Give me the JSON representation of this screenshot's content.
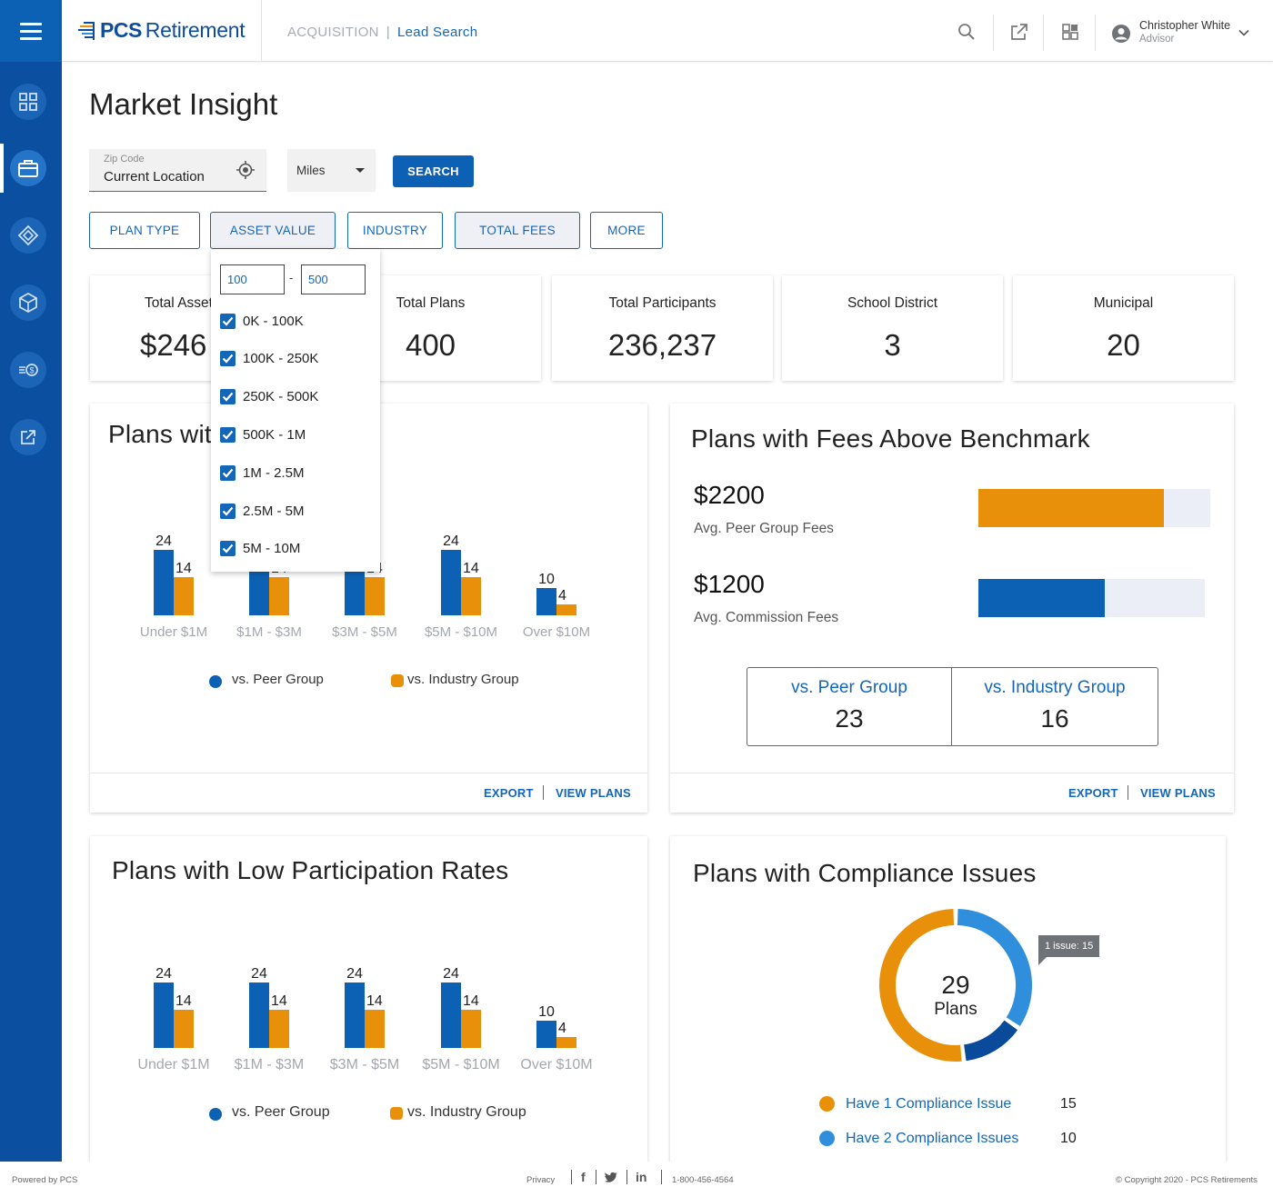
{
  "app": {
    "logo_bold": "PCS",
    "logo_text": "Retirement",
    "breadcrumb_section": "ACQUISITION",
    "breadcrumb_separator": "|",
    "breadcrumb_page": "Lead Search",
    "user_name": "Christopher White",
    "user_role": "Advisor"
  },
  "sidebar": {
    "items": [
      {
        "icon": "dashboard-grid-icon"
      },
      {
        "icon": "briefcase-icon",
        "active": true
      },
      {
        "icon": "diamond-icon"
      },
      {
        "icon": "cube-icon"
      },
      {
        "icon": "dollar-list-icon"
      },
      {
        "icon": "external-link-icon"
      }
    ]
  },
  "page": {
    "title": "Market Insight"
  },
  "search": {
    "zip_label": "Zip Code",
    "zip_value": "Current Location",
    "distance_unit": "Miles",
    "search_label": "SEARCH"
  },
  "filters": {
    "plan_type": "PLAN TYPE",
    "asset_value": "ASSET VALUE",
    "industry": "INDUSTRY",
    "total_fees": "TOTAL FEES",
    "more": "MORE"
  },
  "asset_dropdown": {
    "min": "100",
    "max": "500",
    "dash": "-",
    "options": [
      {
        "label": "0K - 100K",
        "checked": true
      },
      {
        "label": "100K - 250K",
        "checked": true
      },
      {
        "label": "250K - 500K",
        "checked": true
      },
      {
        "label": "500K - 1M",
        "checked": true
      },
      {
        "label": "1M - 2.5M",
        "checked": true
      },
      {
        "label": "2.5M - 5M",
        "checked": true
      },
      {
        "label": "5M - 10M",
        "checked": true
      }
    ]
  },
  "stats": [
    {
      "label": "Total Assets",
      "value": "$246"
    },
    {
      "label": "Total Plans",
      "value": "400"
    },
    {
      "label": "Total Participants",
      "value": "236,237"
    },
    {
      "label": "School District",
      "value": "3"
    },
    {
      "label": "Municipal",
      "value": "20"
    }
  ],
  "panels": {
    "top_left_title": "Plans with",
    "fees_title": "Plans with Fees Above Benchmark",
    "participation_title": "Plans with Low Participation Rates",
    "compliance_title": "Plans with Compliance Issues",
    "export": "EXPORT",
    "view_plans": "VIEW PLANS"
  },
  "fees": {
    "peer_amount": "$2200",
    "peer_label": "Avg. Peer Group Fees",
    "peer_fraction": 0.8,
    "commission_amount": "$1200",
    "commission_label": "Avg. Commission Fees",
    "commission_fraction": 0.56,
    "vs_peer_label": "vs. Peer Group",
    "vs_peer_value": "23",
    "vs_industry_label": "vs. Industry Group",
    "vs_industry_value": "16"
  },
  "legend": {
    "peer": "vs. Peer Group",
    "industry": "vs. Industry Group"
  },
  "colors": {
    "primary": "#0d61b4",
    "sidebar": "#0a4fa0",
    "orange": "#e8900a",
    "dark_blue": "#0a4a9a",
    "light_blue": "#2f8fdc",
    "track": "#eceef7"
  },
  "chart_data": [
    {
      "type": "bar",
      "categories": [
        "Under $1M",
        "$1M - $3M",
        "$3M - $5M",
        "$5M - $10M",
        "Over $10M"
      ],
      "series": [
        {
          "name": "vs. Peer Group",
          "values": [
            24,
            24,
            24,
            24,
            10
          ]
        },
        {
          "name": "vs. Industry Group",
          "values": [
            14,
            14,
            14,
            14,
            4
          ]
        }
      ],
      "title": "Plans with",
      "ylim": [
        0,
        24
      ],
      "legend": "bottom"
    },
    {
      "type": "bar",
      "categories": [
        "Under $1M",
        "$1M - $3M",
        "$3M - $5M",
        "$5M - $10M",
        "Over $10M"
      ],
      "series": [
        {
          "name": "vs. Peer Group",
          "values": [
            24,
            24,
            24,
            24,
            10
          ]
        },
        {
          "name": "vs. Industry Group",
          "values": [
            14,
            14,
            14,
            14,
            4
          ]
        }
      ],
      "title": "Plans with Low Participation Rates",
      "ylim": [
        0,
        24
      ],
      "legend": "bottom"
    },
    {
      "type": "pie",
      "title": "Plans with Compliance Issues",
      "center_value": "29",
      "center_label": "Plans",
      "tooltip": "1 issue: 15",
      "slices": [
        {
          "label": "Have 1 Compliance Issue",
          "value": 15,
          "color": "#e8900a"
        },
        {
          "label": "Have 2 Compliance Issues",
          "value": 10,
          "color": "#2f8fdc"
        },
        {
          "label": "",
          "value": 4,
          "color": "#0a4a9a"
        }
      ]
    }
  ],
  "compliance": {
    "one_label": "Have 1 Compliance Issue",
    "one_value": "15",
    "two_label": "Have 2 Compliance Issues",
    "two_value": "10"
  },
  "footer": {
    "powered": "Powered by PCS",
    "privacy": "Privacy",
    "phone": "1-800-456-4564",
    "copyright": "© Copyright 2020 - PCS Retirements"
  }
}
